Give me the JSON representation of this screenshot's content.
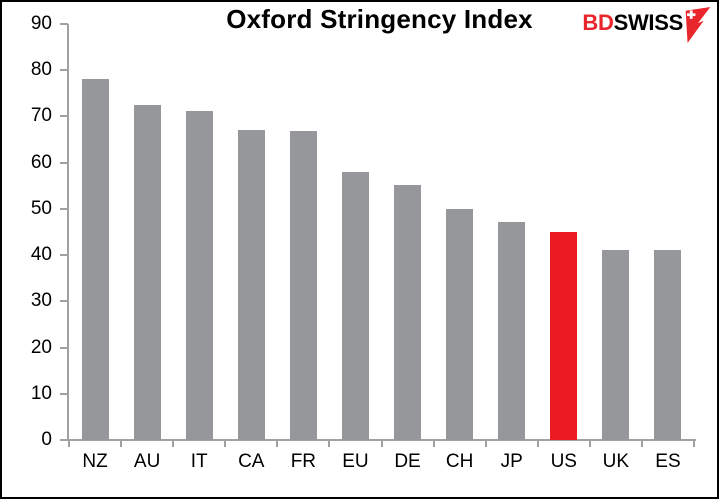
{
  "header": {
    "title": "Oxford Stringency Index",
    "logo": {
      "prefix": "BD",
      "suffix": "SWISS",
      "icon": "swiss-arrow-flag-icon",
      "prefix_color": "#E8262C",
      "suffix_color": "#000000"
    }
  },
  "chart_data": {
    "type": "bar",
    "title": "Oxford Stringency Index",
    "categories": [
      "NZ",
      "AU",
      "IT",
      "CA",
      "FR",
      "EU",
      "DE",
      "CH",
      "JP",
      "US",
      "UK",
      "ES"
    ],
    "values": [
      78.2,
      72.5,
      71.2,
      67.1,
      66.8,
      57.9,
      55.1,
      50,
      47.2,
      44.9,
      41.2,
      41.2
    ],
    "highlight_category": "US",
    "bar_color": "#96979B",
    "highlight_color": "#EC1B23",
    "axis_color": "#A0A0A0",
    "xlabel": "",
    "ylabel": "",
    "ylim": [
      0,
      90
    ],
    "yticks": [
      0,
      10,
      20,
      30,
      40,
      50,
      60,
      70,
      80,
      90
    ],
    "grid": false,
    "legend": null
  }
}
